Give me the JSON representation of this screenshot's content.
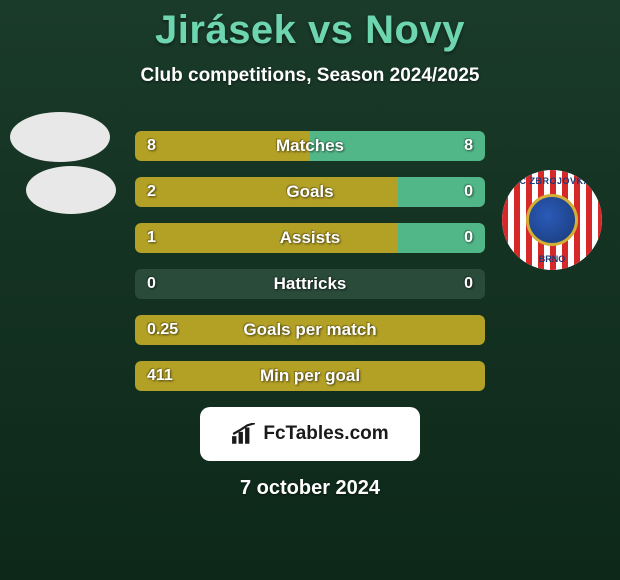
{
  "title": "Jirásek vs Novy",
  "subtitle": "Club competitions, Season 2024/2025",
  "date": "7 october 2024",
  "footer_logo_text": "FcTables.com",
  "colors": {
    "left_bar": "#b3a126",
    "right_bar": "#52b788",
    "empty_bar": "#2a4a3a",
    "title": "#6dd5b0",
    "text": "#ffffff",
    "background_top": "#1a3a2a",
    "background_bottom": "#0d2818"
  },
  "badge": {
    "top_text": "FC ZBROJOVKA",
    "bottom_text": "BRNO"
  },
  "stats": [
    {
      "label": "Matches",
      "left_val": "8",
      "right_val": "8",
      "left_pct": 50,
      "right_pct": 50,
      "left_color": "#b3a126",
      "right_color": "#52b788"
    },
    {
      "label": "Goals",
      "left_val": "2",
      "right_val": "0",
      "left_pct": 75,
      "right_pct": 25,
      "left_color": "#b3a126",
      "right_color": "#52b788"
    },
    {
      "label": "Assists",
      "left_val": "1",
      "right_val": "0",
      "left_pct": 75,
      "right_pct": 25,
      "left_color": "#b3a126",
      "right_color": "#52b788"
    },
    {
      "label": "Hattricks",
      "left_val": "0",
      "right_val": "0",
      "left_pct": 0,
      "right_pct": 0,
      "left_color": "#b3a126",
      "right_color": "#52b788"
    },
    {
      "label": "Goals per match",
      "left_val": "0.25",
      "right_val": "",
      "left_pct": 100,
      "right_pct": 0,
      "left_color": "#b3a126",
      "right_color": "#52b788"
    },
    {
      "label": "Min per goal",
      "left_val": "411",
      "right_val": "",
      "left_pct": 100,
      "right_pct": 0,
      "left_color": "#b3a126",
      "right_color": "#52b788"
    }
  ]
}
